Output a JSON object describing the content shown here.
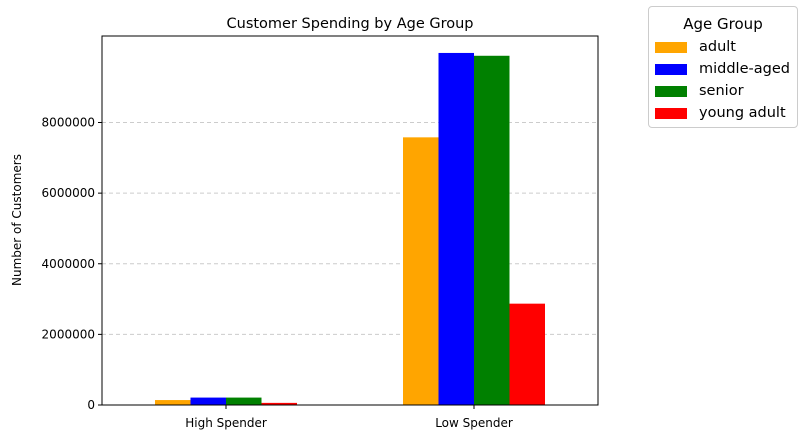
{
  "chart_data": {
    "type": "bar",
    "title": "Customer Spending by Age Group",
    "xlabel": "",
    "ylabel": "Number of Customers",
    "categories": [
      "High Spender",
      "Low Spender"
    ],
    "ylim": [
      0,
      10450000
    ],
    "yticks": [
      0,
      2000000,
      4000000,
      6000000,
      8000000
    ],
    "ytick_labels": [
      "0",
      "2000000",
      "4000000",
      "6000000",
      "8000000"
    ],
    "grid": "y-dashed",
    "legend_title": "Age Group",
    "legend_position": "outside-top-right",
    "series": [
      {
        "name": "adult",
        "color": "#ffa500",
        "values": [
          140000,
          7580000
        ]
      },
      {
        "name": "middle-aged",
        "color": "#0000ff",
        "values": [
          210000,
          9970000
        ]
      },
      {
        "name": "senior",
        "color": "#008000",
        "values": [
          210000,
          9890000
        ]
      },
      {
        "name": "young adult",
        "color": "#ff0000",
        "values": [
          60000,
          2870000
        ]
      }
    ]
  }
}
